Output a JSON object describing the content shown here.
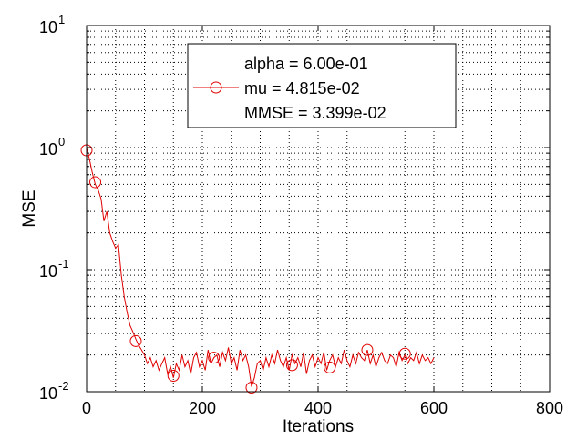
{
  "chart_data": {
    "type": "line",
    "title": "",
    "xlabel": "Iterations",
    "ylabel": "MSE",
    "xlim": [
      0,
      800
    ],
    "ylim": [
      0.01,
      10
    ],
    "yscale": "log",
    "grid": true,
    "x_ticks": [
      {
        "value": 0,
        "label": "0"
      },
      {
        "value": 200,
        "label": "200"
      },
      {
        "value": 400,
        "label": "400"
      },
      {
        "value": 600,
        "label": "600"
      },
      {
        "value": 800,
        "label": "800"
      }
    ],
    "y_ticks": [
      {
        "value": 0.01,
        "base": "10",
        "exp": "-2"
      },
      {
        "value": 0.1,
        "base": "10",
        "exp": "-1"
      },
      {
        "value": 1,
        "base": "10",
        "exp": "0"
      },
      {
        "value": 10,
        "base": "10",
        "exp": "1"
      }
    ],
    "legend": {
      "placement": "top-right",
      "lines": [
        "alpha = 6.00e-01",
        "mu = 4.815e-02",
        "MMSE = 3.399e-02"
      ]
    },
    "series": [
      {
        "color": "#e00000",
        "marker": "circle",
        "x": [
          0,
          5,
          10,
          15,
          20,
          25,
          30,
          35,
          40,
          45,
          50,
          55,
          60,
          65,
          70,
          75,
          80,
          85,
          90,
          95,
          100,
          105,
          110,
          115,
          120,
          125,
          130,
          135,
          140,
          145,
          150,
          155,
          160,
          165,
          170,
          175,
          180,
          185,
          190,
          195,
          200,
          205,
          210,
          215,
          220,
          225,
          230,
          235,
          240,
          245,
          250,
          255,
          260,
          265,
          270,
          275,
          280,
          285,
          290,
          295,
          300,
          305,
          310,
          315,
          320,
          325,
          330,
          335,
          340,
          345,
          350,
          355,
          360,
          365,
          370,
          375,
          380,
          385,
          390,
          395,
          400,
          405,
          410,
          415,
          420,
          425,
          430,
          435,
          440,
          445,
          450,
          455,
          460,
          465,
          470,
          475,
          480,
          485,
          490,
          495,
          500,
          505,
          510,
          515,
          520,
          525,
          530,
          535,
          540,
          545,
          550,
          555,
          560,
          565,
          570,
          575,
          580,
          585,
          590,
          595,
          600
        ],
        "y": [
          1.0,
          0.8,
          0.62,
          0.5,
          0.45,
          0.38,
          0.25,
          0.3,
          0.2,
          0.17,
          0.15,
          0.16,
          0.09,
          0.06,
          0.045,
          0.035,
          0.031,
          0.027,
          0.024,
          0.022,
          0.02,
          0.017,
          0.019,
          0.016,
          0.018,
          0.015,
          0.017,
          0.019,
          0.014,
          0.016,
          0.013,
          0.017,
          0.015,
          0.02,
          0.016,
          0.018,
          0.014,
          0.019,
          0.021,
          0.016,
          0.018,
          0.015,
          0.022,
          0.017,
          0.019,
          0.02,
          0.016,
          0.021,
          0.018,
          0.023,
          0.017,
          0.019,
          0.015,
          0.022,
          0.018,
          0.02,
          0.016,
          0.011,
          0.013,
          0.017,
          0.018,
          0.015,
          0.019,
          0.016,
          0.02,
          0.017,
          0.022,
          0.018,
          0.016,
          0.019,
          0.015,
          0.02,
          0.017,
          0.019,
          0.016,
          0.021,
          0.014,
          0.018,
          0.02,
          0.016,
          0.019,
          0.017,
          0.021,
          0.015,
          0.018,
          0.02,
          0.016,
          0.019,
          0.017,
          0.022,
          0.018,
          0.016,
          0.02,
          0.017,
          0.021,
          0.019,
          0.018,
          0.022,
          0.017,
          0.02,
          0.016,
          0.019,
          0.021,
          0.018,
          0.017,
          0.02,
          0.019,
          0.016,
          0.021,
          0.018,
          0.02,
          0.017,
          0.019,
          0.018,
          0.021,
          0.017,
          0.02,
          0.018,
          0.019,
          0.017,
          0.019
        ],
        "marker_x": [
          0,
          15,
          85,
          150,
          220,
          285,
          355,
          420,
          485,
          550
        ],
        "marker_y": [
          0.95,
          0.52,
          0.026,
          0.0135,
          0.019,
          0.0108,
          0.0165,
          0.0158,
          0.022,
          0.0205
        ]
      }
    ]
  }
}
